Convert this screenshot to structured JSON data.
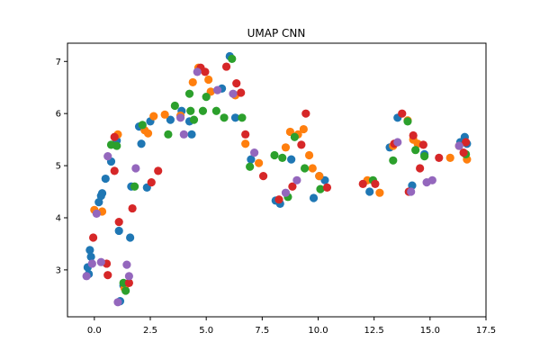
{
  "chart_data": {
    "type": "scatter",
    "title": "UMAP CNN",
    "xlabel": "",
    "ylabel": "",
    "xlim": [
      -1.2,
      17.5
    ],
    "ylim": [
      2.1,
      7.35
    ],
    "xticks": [
      0.0,
      2.5,
      5.0,
      7.5,
      10.0,
      12.5,
      15.0,
      17.5
    ],
    "xtick_labels": [
      "0.0",
      "2.5",
      "5.0",
      "7.5",
      "10.0",
      "12.5",
      "15.0",
      "17.5"
    ],
    "yticks": [
      3,
      4,
      5,
      6,
      7
    ],
    "ytick_labels": [
      "3",
      "4",
      "5",
      "6",
      "7"
    ],
    "grid": false,
    "legend": "none",
    "colors": {
      "blue": "#1f77b4",
      "orange": "#ff7f0e",
      "green": "#2ca02c",
      "red": "#d62728",
      "purple": "#9467bd"
    },
    "series": [
      {
        "color": "#1f77b4",
        "x": [
          -0.25,
          -0.3,
          -0.15,
          0.2,
          0.35,
          0.5,
          0.75,
          1.0,
          1.1,
          1.3,
          1.6,
          2.0,
          2.1,
          2.35,
          2.5,
          3.4,
          3.9,
          4.25,
          4.35,
          5.7,
          6.05,
          6.3,
          7.0,
          8.1,
          8.3,
          8.8,
          9.8,
          10.05,
          10.3,
          12.3,
          13.2,
          13.55,
          14.2,
          14.75,
          16.35,
          16.55,
          16.65,
          1.15,
          -0.2,
          0.3,
          1.65
        ],
        "y": [
          2.92,
          3.05,
          3.25,
          4.3,
          4.47,
          4.75,
          5.08,
          5.48,
          3.75,
          2.7,
          3.62,
          5.75,
          5.42,
          4.58,
          5.85,
          5.88,
          6.05,
          5.85,
          5.6,
          6.48,
          7.1,
          5.92,
          5.12,
          4.33,
          4.27,
          5.12,
          4.38,
          4.8,
          4.72,
          4.5,
          5.35,
          5.92,
          4.62,
          5.22,
          5.45,
          5.55,
          5.42,
          2.4,
          3.38,
          4.42,
          4.6
        ]
      },
      {
        "color": "#ff7f0e",
        "x": [
          0.0,
          0.35,
          1.05,
          1.35,
          2.25,
          2.4,
          2.65,
          3.15,
          3.85,
          4.4,
          4.65,
          5.1,
          5.2,
          6.3,
          6.75,
          7.35,
          8.55,
          8.75,
          9.1,
          9.35,
          9.6,
          9.75,
          10.05,
          12.2,
          12.75,
          13.35,
          14.0,
          14.25,
          14.45,
          15.9,
          16.3,
          16.65
        ],
        "y": [
          4.15,
          4.12,
          5.6,
          2.65,
          5.68,
          5.62,
          5.95,
          5.98,
          5.96,
          6.6,
          6.88,
          6.65,
          6.42,
          6.35,
          5.42,
          5.05,
          5.35,
          5.65,
          5.6,
          5.7,
          5.2,
          4.95,
          4.8,
          4.72,
          4.48,
          5.38,
          5.87,
          5.5,
          5.42,
          5.15,
          5.38,
          5.12
        ]
      },
      {
        "color": "#2ca02c",
        "x": [
          0.75,
          1.0,
          1.3,
          1.4,
          1.8,
          2.15,
          3.3,
          3.6,
          4.25,
          4.3,
          4.45,
          4.85,
          5.0,
          5.45,
          5.8,
          6.15,
          6.6,
          6.95,
          8.05,
          8.4,
          8.65,
          8.95,
          9.4,
          10.1,
          12.45,
          13.35,
          14.0,
          14.35,
          14.75,
          16.6
        ],
        "y": [
          5.4,
          5.38,
          2.75,
          2.6,
          4.6,
          5.78,
          5.6,
          6.15,
          6.38,
          6.05,
          5.88,
          6.05,
          6.32,
          6.05,
          5.92,
          7.05,
          5.92,
          4.98,
          5.2,
          5.15,
          4.4,
          5.55,
          4.95,
          4.55,
          4.72,
          5.1,
          5.85,
          5.3,
          5.18,
          5.22
        ]
      },
      {
        "color": "#d62728",
        "x": [
          -0.05,
          0.6,
          0.9,
          1.1,
          1.55,
          1.7,
          2.55,
          2.85,
          4.75,
          4.95,
          5.9,
          6.35,
          6.55,
          6.75,
          7.55,
          8.25,
          8.85,
          9.25,
          9.45,
          10.4,
          12.0,
          12.55,
          13.4,
          13.75,
          14.05,
          14.25,
          14.55,
          14.7,
          15.4,
          16.5,
          16.6,
          0.55,
          0.9
        ],
        "y": [
          3.62,
          2.9,
          4.9,
          3.92,
          2.75,
          4.18,
          4.68,
          4.9,
          6.88,
          6.8,
          6.9,
          6.58,
          6.4,
          5.6,
          4.8,
          4.35,
          4.6,
          5.4,
          6.0,
          4.58,
          4.65,
          4.65,
          5.42,
          6.0,
          4.5,
          5.58,
          4.95,
          5.4,
          5.15,
          5.25,
          5.45,
          3.12,
          5.55
        ]
      },
      {
        "color": "#9467bd",
        "x": [
          -0.35,
          -0.1,
          0.1,
          0.3,
          0.6,
          1.05,
          1.45,
          1.55,
          1.85,
          3.85,
          4.0,
          4.6,
          5.5,
          6.2,
          7.15,
          8.55,
          9.05,
          13.55,
          14.15,
          14.85,
          15.1,
          16.3
        ],
        "y": [
          2.88,
          3.12,
          4.08,
          3.15,
          5.18,
          2.38,
          3.1,
          2.88,
          4.95,
          5.92,
          5.6,
          6.8,
          6.45,
          6.38,
          5.25,
          4.48,
          4.72,
          5.45,
          4.5,
          4.68,
          4.72,
          5.38
        ]
      }
    ]
  }
}
